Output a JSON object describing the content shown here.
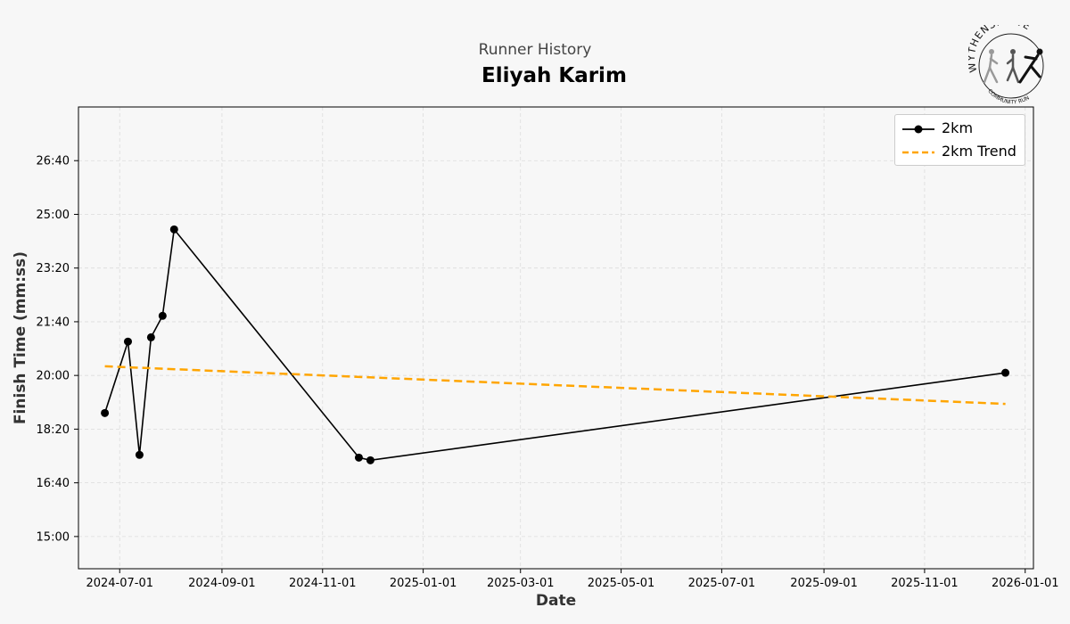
{
  "header": {
    "supertitle": "Runner History",
    "title": "Eliyah Karim"
  },
  "logo": {
    "alt": "WYTHENSHAWE COMMUNITY RUN"
  },
  "chart_data": {
    "type": "line",
    "xlabel": "Date",
    "ylabel": "Finish Time (mm:ss)",
    "x_axis_type": "date",
    "xlim": [
      "2024-06-06",
      "2026-01-06"
    ],
    "ylim_seconds": [
      840,
      1700
    ],
    "x_ticks": [
      "2024-07-01",
      "2024-09-01",
      "2024-11-01",
      "2025-01-01",
      "2025-03-01",
      "2025-05-01",
      "2025-07-01",
      "2025-09-01",
      "2025-11-01",
      "2026-01-01"
    ],
    "y_ticks": [
      "15:00",
      "16:40",
      "18:20",
      "20:00",
      "21:40",
      "23:20",
      "25:00",
      "26:40"
    ],
    "grid": true,
    "legend_position": "top-right",
    "series": [
      {
        "name": "2km",
        "color": "#000000",
        "style": "solid",
        "marker": "circle",
        "points": [
          {
            "date": "2024-06-22",
            "time": "18:50"
          },
          {
            "date": "2024-07-06",
            "time": "21:03"
          },
          {
            "date": "2024-07-13",
            "time": "17:32"
          },
          {
            "date": "2024-07-20",
            "time": "21:11"
          },
          {
            "date": "2024-07-27",
            "time": "21:51"
          },
          {
            "date": "2024-08-03",
            "time": "24:32"
          },
          {
            "date": "2024-11-23",
            "time": "17:27"
          },
          {
            "date": "2024-11-30",
            "time": "17:22"
          },
          {
            "date": "2025-12-20",
            "time": "20:05"
          }
        ]
      },
      {
        "name": "2km Trend",
        "color": "#FFA500",
        "style": "dashed",
        "points": [
          {
            "date": "2024-06-22",
            "time": "20:17"
          },
          {
            "date": "2025-12-20",
            "time": "19:07"
          }
        ]
      }
    ]
  }
}
